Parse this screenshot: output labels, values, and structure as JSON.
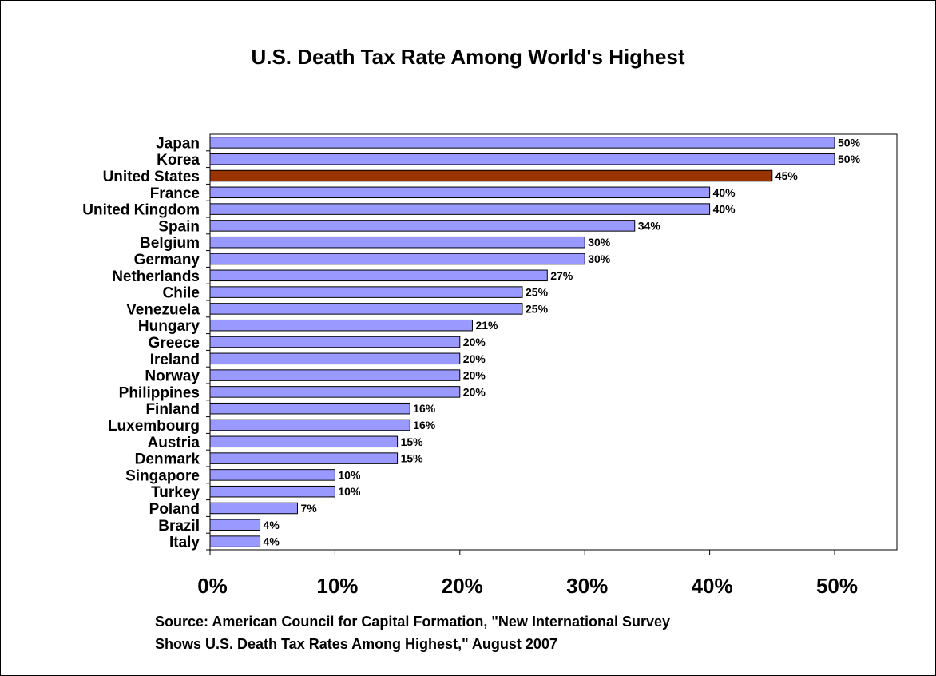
{
  "chart_data": {
    "type": "bar",
    "orientation": "horizontal",
    "title": "U.S. Death Tax Rate Among World's Highest",
    "xlabel": "",
    "ylabel": "",
    "xlim": [
      0,
      55
    ],
    "x_ticks": [
      0,
      10,
      20,
      30,
      40,
      50
    ],
    "x_tick_labels": [
      "0%",
      "10%",
      "20%",
      "30%",
      "40%",
      "50%"
    ],
    "value_suffix": "%",
    "grid": false,
    "bar_color": "#9999ff",
    "highlight_color": "#993300",
    "highlight_category": "United States",
    "categories": [
      "Japan",
      "Korea",
      "United States",
      "France",
      "United Kingdom",
      "Spain",
      "Belgium",
      "Germany",
      "Netherlands",
      "Chile",
      "Venezuela",
      "Hungary",
      "Greece",
      "Ireland",
      "Norway",
      "Philippines",
      "Finland",
      "Luxembourg",
      "Austria",
      "Denmark",
      "Singapore",
      "Turkey",
      "Poland",
      "Brazil",
      "Italy"
    ],
    "values": [
      50,
      50,
      45,
      40,
      40,
      34,
      30,
      30,
      27,
      25,
      25,
      21,
      20,
      20,
      20,
      20,
      16,
      16,
      15,
      15,
      10,
      10,
      7,
      4,
      4
    ],
    "data_labels": [
      "50%",
      "50%",
      "45%",
      "40%",
      "40%",
      "34%",
      "30%",
      "30%",
      "27%",
      "25%",
      "25%",
      "21%",
      "20%",
      "20%",
      "20%",
      "20%",
      "16%",
      "16%",
      "15%",
      "15%",
      "10%",
      "10%",
      "7%",
      "4%",
      "4%"
    ]
  },
  "source_lines": [
    "Source: American Council for Capital Formation, \"New International Survey",
    "Shows U.S. Death Tax Rates Among Highest,\" August 2007"
  ]
}
